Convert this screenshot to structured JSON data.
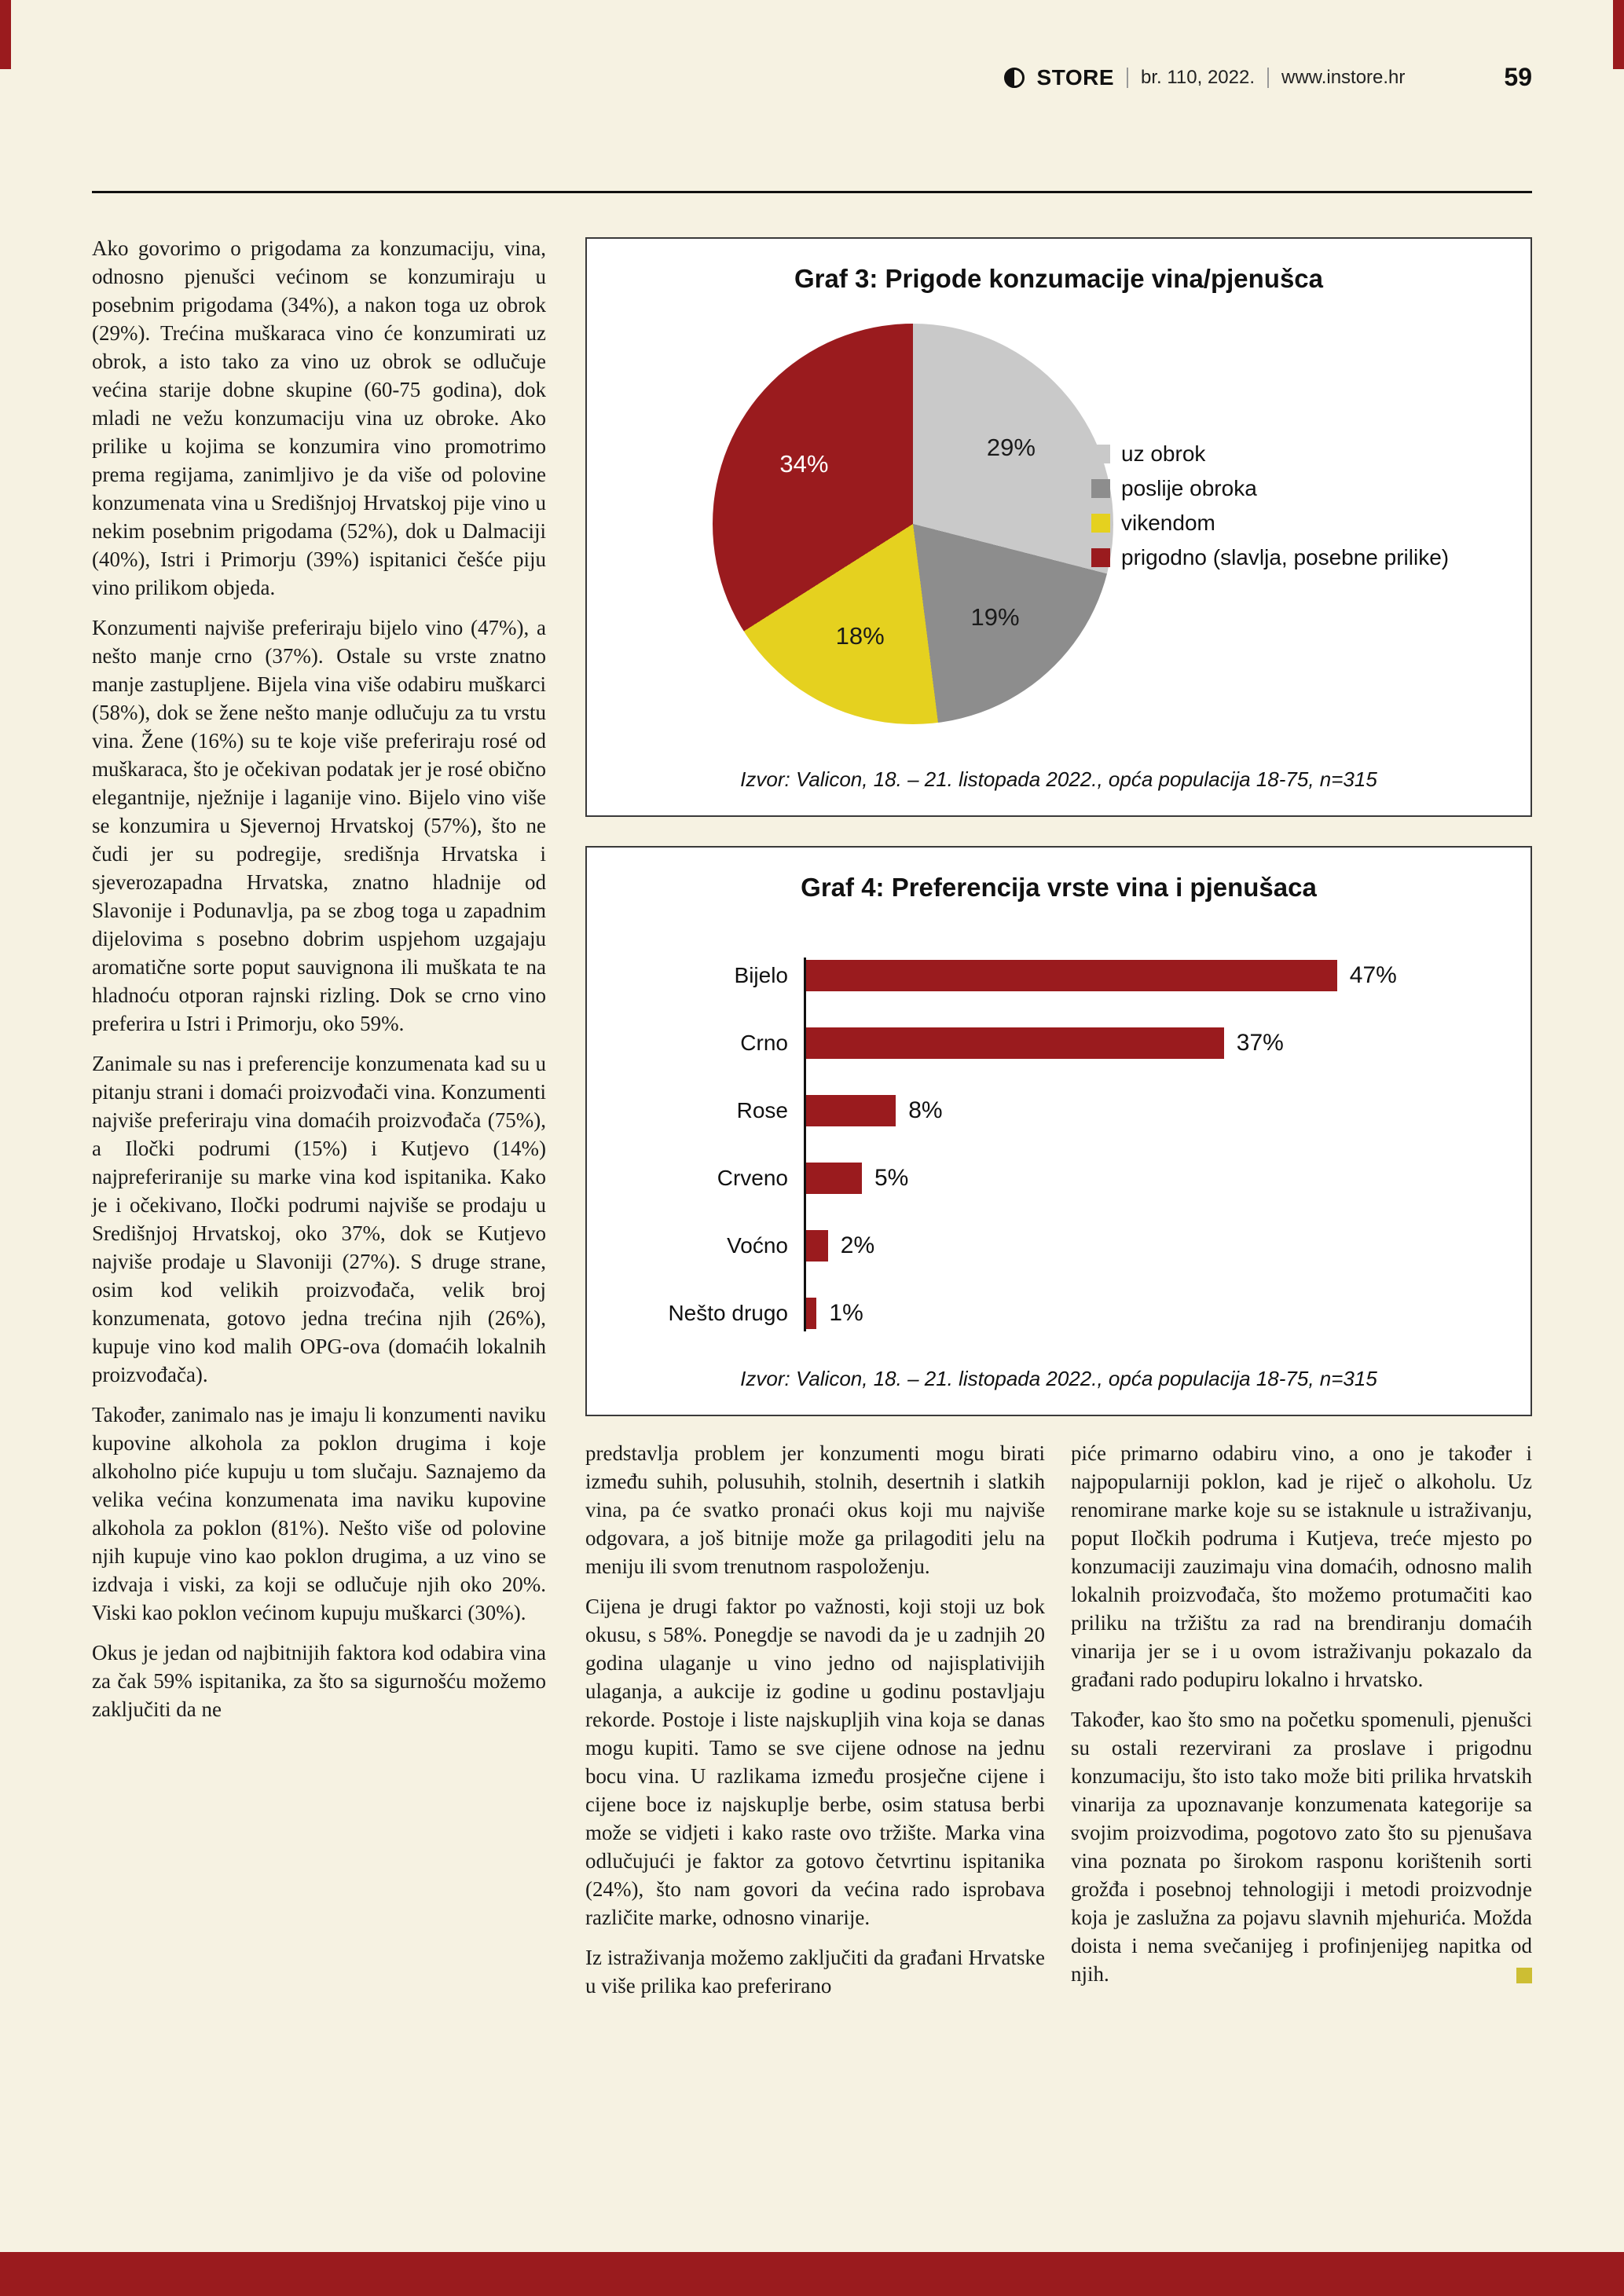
{
  "masthead": {
    "logo_text": "STORE",
    "issue": "br. 110, 2022.",
    "website": "www.instore.hr",
    "page_number": "59"
  },
  "article": {
    "left_column": [
      "Ako govorimo o prigodama za konzumaciju, vina, odnosno pjenušci većinom se konzumiraju u posebnim prigodama (34%), a nakon toga uz obrok (29%). Trećina muškaraca vino će konzumirati uz obrok, a isto tako za vino uz obrok se odlučuje većina starije dobne skupine (60-75 godina), dok mladi ne vežu konzumaciju vina uz obroke. Ako prilike u kojima se konzumira vino promotrimo prema regijama, zanimljivo je da više od polovine konzumenata vina u Središnjoj Hrvatskoj pije vino u nekim posebnim prigodama (52%), dok u Dalmaciji (40%), Istri i Primorju (39%) ispitanici češće piju vino prilikom objeda.",
      "Konzumenti najviše preferiraju bijelo vino (47%), a nešto manje crno (37%). Ostale su vrste znatno manje zastupljene. Bijela vina više odabiru muškarci (58%), dok se žene nešto manje odlučuju za tu vrstu vina. Žene (16%) su te koje više preferiraju rosé od muškaraca, što je očekivan podatak jer je rosé obično elegantnije, nježnije i laganije vino. Bijelo vino više se konzumira u Sjevernoj Hrvatskoj (57%), što ne čudi jer su podregije, središnja Hrvatska i sjeverozapadna Hrvatska, znatno hladnije od Slavonije i Podunavlja, pa se zbog toga u zapadnim dijelovima s posebno dobrim uspjehom uzgajaju aromatične sorte poput sauvignona ili muškata te na hladnoću otporan rajnski rizling. Dok se crno vino preferira u Istri i Primorju, oko 59%.",
      "Zanimale su nas i preferencije konzumenata kad su u pitanju strani i domaći proizvođači vina. Konzumenti najviše preferiraju vina domaćih proizvođača (75%), a Iločki podrumi (15%) i Kutjevo (14%) najpreferiranije su marke vina kod ispitanika. Kako je i očekivano, Iločki podrumi najviše se prodaju u Središnjoj Hrvatskoj, oko 37%, dok se Kutjevo najviše prodaje u Slavoniji (27%). S druge strane, osim kod velikih proizvođača, velik broj konzumenata, gotovo jedna trećina njih (26%), kupuje vino kod malih OPG-ova (domaćih lokalnih proizvođača).",
      "Također, zanimalo nas je imaju li konzumenti naviku kupovine alkohola za poklon drugima i koje alkoholno piće kupuju u tom slučaju. Saznajemo da velika većina konzumenata ima naviku kupovine alkohola za poklon (81%). Nešto više od polovine njih kupuje vino kao poklon drugima, a uz vino se izdvaja i viski, za koji se odlučuje njih oko 20%. Viski kao poklon većinom kupuju muškarci (30%).",
      "Okus je jedan od najbitnijih faktora kod odabira vina za čak 59% ispitanika, za što sa sigurnošću možemo zaključiti da ne"
    ],
    "middle_column": [
      "predstavlja problem jer konzumenti mogu birati između suhih, polusuhih, stolnih, desertnih i slatkih vina, pa će svatko pronaći okus koji mu najviše odgovara, a još bitnije može ga prilagoditi jelu na meniju ili svom trenutnom raspoloženju.",
      "Cijena je drugi faktor po važnosti, koji stoji uz bok okusu, s 58%. Ponegdje se navodi da je u zadnjih 20 godina ulaganje u vino jedno od najisplativijih ulaganja, a aukcije iz godine u godinu postavljaju rekorde. Postoje i liste najskupljih vina koja se danas mogu kupiti. Tamo se sve cijene odnose na jednu bocu vina. U razlikama između prosječne cijene i cijene boce iz najskuplje berbe, osim statusa berbi može se vidjeti i kako raste ovo tržište. Marka vina odlučujući je faktor za gotovo četvrtinu ispitanika (24%), što nam govori da većina rado isprobava različite marke, odnosno vinarije.",
      "Iz istraživanja možemo zaključiti da građani Hrvatske u više prilika kao preferirano"
    ],
    "right_column": [
      "piće primarno odabiru vino, a ono je također i najpopularniji poklon, kad je riječ o alkoholu. Uz renomirane marke koje su se istaknule u istraživanju, poput Iločkih podruma i Kutjeva, treće mjesto po konzumaciji zauzimaju vina domaćih, odnosno malih lokalnih proizvođača, što možemo protumačiti kao priliku na tržištu za rad na brendiranju domaćih vinarija jer se i u ovom istraživanju pokazalo da građani rado podupiru lokalno i hrvatsko.",
      "Također, kao što smo na početku spomenuli, pjenušci su ostali rezervirani za proslave i prigodnu konzumaciju, što isto tako može biti prilika hrvatskih vinarija za upoznavanje konzumenata kategorije sa svojim proizvodima, pogotovo zato što su pjenušava vina poznata po širokom rasponu korištenih sorti grožđa i posebnoj tehnologiji i metodi proizvodnje koja je zaslužna za pojavu slavnih mjehurića. Možda doista i nema svečanijeg i profinjenijeg napitka od njih."
    ]
  },
  "chart_data": [
    {
      "type": "pie",
      "title": "Graf 3: Prigode konzumacije vina/pjenušca",
      "slices": [
        {
          "label": "uz obrok",
          "value": 29,
          "pct": "29%",
          "color": "#c9c9c9",
          "text_color": "#1a1a1a"
        },
        {
          "label": "poslije obroka",
          "value": 19,
          "pct": "19%",
          "color": "#8d8d8d",
          "text_color": "#1a1a1a"
        },
        {
          "label": "vikendom",
          "value": 18,
          "pct": "18%",
          "color": "#e5d11f",
          "text_color": "#1a1a1a"
        },
        {
          "label": "prigodno (slavlja, posebne prilike)",
          "value": 34,
          "pct": "34%",
          "color": "#9a1b1e",
          "text_color": "#ffffff"
        }
      ],
      "start_angle_deg": 0,
      "direction": "clockwise",
      "legend_position": "right",
      "source": "Izvor: Valicon, 18. – 21. listopada 2022., opća populacija 18-75, n=315"
    },
    {
      "type": "bar",
      "orientation": "horizontal",
      "title": "Graf 4: Preferencija vrste vina i pjenušaca",
      "categories": [
        "Bijelo",
        "Crno",
        "Rose",
        "Crveno",
        "Voćno",
        "Nešto drugo"
      ],
      "values": [
        47,
        37,
        8,
        5,
        2,
        1
      ],
      "value_labels": [
        "47%",
        "37%",
        "8%",
        "5%",
        "2%",
        "1%"
      ],
      "bar_color": "#9a1b1e",
      "xlim": [
        0,
        50
      ],
      "grid": false,
      "source": "Izvor: Valicon, 18. – 21. listopada 2022., opća populacija 18-75, n=315"
    }
  ],
  "colors": {
    "accent_red": "#9a1b1e",
    "accent_yellow": "#e5d11f",
    "end_marker_yellow": "#cdbe33",
    "page_cream": "#f6f2e2"
  }
}
